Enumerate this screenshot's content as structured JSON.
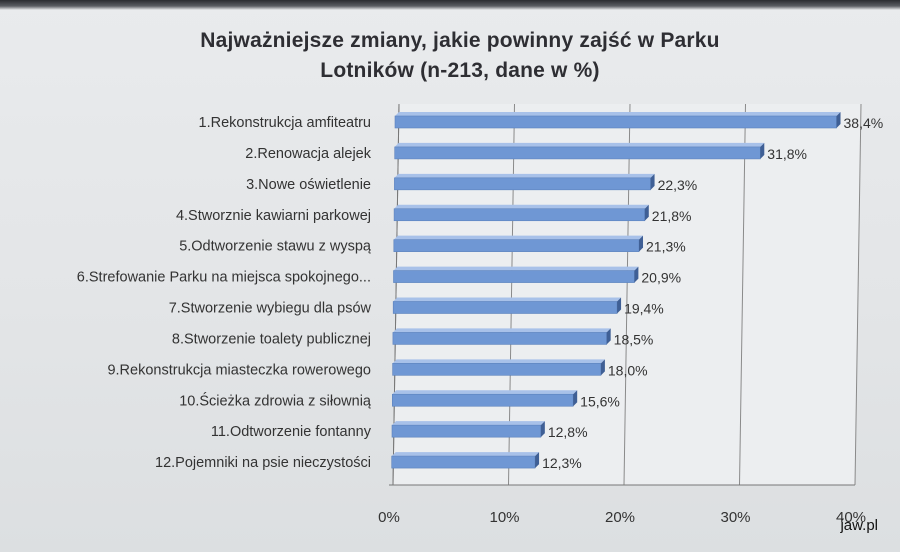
{
  "source_label": "jaw.pl",
  "colors": {
    "bar_front": "#6f97d4",
    "bar_top": "#a8c1e9",
    "bar_end": "#3f5f95",
    "text": "#333333",
    "grid": "#8a8a8a"
  },
  "chart_data": {
    "type": "bar",
    "orientation": "horizontal",
    "title_line1": "Najważniejsze zmiany, jakie powinny zajść w Parku",
    "title_line2": "Lotników (n-213, dane w %)",
    "categories": [
      "1.Rekonstrukcja amfiteatru",
      "2.Renowacja alejek",
      "3.Nowe oświetlenie",
      "4.Stworznie kawiarni parkowej",
      "5.Odtworzenie stawu z wyspą",
      "6.Strefowanie Parku na miejsca spokojnego...",
      "7.Stworzenie wybiegu dla psów",
      "8.Stworzenie toalety publicznej",
      "9.Rekonstrukcja miasteczka rowerowego",
      "10.Ścieżka zdrowia z siłownią",
      "11.Odtworzenie fontanny",
      "12.Pojemniki na psie nieczystości"
    ],
    "values": [
      38.4,
      31.8,
      22.3,
      21.8,
      21.3,
      20.9,
      19.4,
      18.5,
      18.0,
      15.6,
      12.8,
      12.3
    ],
    "value_labels": [
      "38,4%",
      "31,8%",
      "22,3%",
      "21,8%",
      "21,3%",
      "20,9%",
      "19,4%",
      "18,5%",
      "18,0%",
      "15,6%",
      "12,8%",
      "12,3%"
    ],
    "x_ticks": [
      "0%",
      "10%",
      "20%",
      "30%",
      "40%"
    ],
    "xlim": [
      0,
      40
    ],
    "grid": true,
    "legend": "none"
  }
}
